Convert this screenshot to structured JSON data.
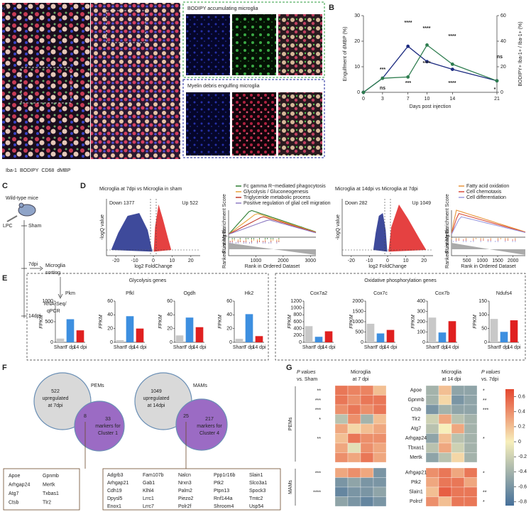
{
  "figure": {
    "panel_labels": [
      "A",
      "B",
      "C",
      "D",
      "E",
      "F",
      "G"
    ],
    "a": {
      "insets": [
        "BODIPY accumulating microglia",
        "Myelin debris engulfing microglia"
      ],
      "stains": [
        {
          "name": "Iba-1",
          "color": "#e3262d"
        },
        {
          "name": "BODIPY",
          "color": "#2e9e3e"
        },
        {
          "name": "CD68",
          "color": "#8a8a8a"
        },
        {
          "name": "dMBP",
          "color": "#1f2a9c"
        }
      ]
    },
    "c": {
      "mice": "Wild-type mice",
      "injection": "LPC",
      "groups": [
        "Sham",
        "7dpi",
        "14dpi"
      ],
      "sorting": [
        "Microglia",
        "sorting"
      ],
      "assay": [
        "RNA-Seq/",
        "qPCR"
      ]
    },
    "d": [
      {
        "title": "Microglia at 7dpi vs Microglia in sham",
        "down": "Down 1377",
        "up": "Up 522",
        "volcano_ylabel": "-logQ value",
        "volcano_xlabel": "log2 FoldChange",
        "volcano_xlim": [
          -25,
          25
        ],
        "volcano_xticks": [
          -20,
          -10,
          0,
          10,
          20
        ],
        "gsea_ylabel": "Running Enrichment Score",
        "gsea_metric_label": "Ranked List Metric",
        "gsea_xlabel": "Rank in Ordered Dataset",
        "gsea_xlim": [
          0,
          3200
        ],
        "gsea_xticks": [
          1000,
          2000,
          3000
        ],
        "pathways": [
          {
            "name": "Fc gamma R−mediated phagocytosis",
            "color": "#2e7d32"
          },
          {
            "name": "Glycolysis / Gluconeogenesis",
            "color": "#e8a33a"
          },
          {
            "name": "Triglyceride metabolic process",
            "color": "#c0392b"
          },
          {
            "name": "Positive regulation of glial cell migration",
            "color": "#8e7cc3"
          }
        ]
      },
      {
        "title": "Microglia at 14dpi vs Microglia at 7dpi",
        "down": "Down 282",
        "up": "Up 1049",
        "volcano_ylabel": "-logQ value",
        "volcano_xlabel": "log2 FoldChange",
        "volcano_xlim": [
          -25,
          25
        ],
        "volcano_xticks": [
          -20,
          -10,
          0,
          10,
          20
        ],
        "gsea_ylabel": "Running Enrichment Score",
        "gsea_metric_label": "Ranked List Metric",
        "gsea_xlabel": "Rank in Ordered Dataset",
        "gsea_xlim": [
          0,
          2400
        ],
        "gsea_xticks": [
          500,
          1000,
          1500,
          2000
        ],
        "pathways": [
          {
            "name": "Fatty acid oxidation",
            "color": "#e8943a"
          },
          {
            "name": "Cell chemotaxis",
            "color": "#d84a3a"
          },
          {
            "name": "Cell differentiation",
            "color": "#9a9ae0"
          }
        ]
      }
    ],
    "e": {
      "titles": [
        "Glycolysis genes",
        "Oxidative phosphorylation genes"
      ]
    },
    "f": {
      "venns": [
        {
          "name": "PEMs",
          "left": [
            "522",
            "upregulated",
            "at 7dpi"
          ],
          "overlap": "8",
          "right": [
            "33",
            "markers for",
            "Cluster 1"
          ],
          "genes": [
            [
              "Apoe",
              "Gpnmb"
            ],
            [
              "Arhgap24",
              "Mertk"
            ],
            [
              "Atg7",
              "Txbas1"
            ],
            [
              "Ctsb",
              "Tlr2"
            ]
          ]
        },
        {
          "name": "MAMs",
          "left": [
            "1049",
            "upregulated",
            "at 14dpi"
          ],
          "overlap": "25",
          "right": [
            "217",
            "markers for",
            "Cluster 4"
          ],
          "genes": [
            [
              "Adgrb3",
              "Fam107b",
              "Nalcn",
              "Ppp1r16b",
              "Slain1"
            ],
            [
              "Arhgap21",
              "Gab1",
              "Nrxn3",
              "Ptk2",
              "Slco3a1"
            ],
            [
              "Cdh19",
              "Klhl4",
              "Palm2",
              "Ptpn13",
              "Spock3"
            ],
            [
              "Dpysl5",
              "Lrrc1",
              "Piezo2",
              "Rnf144a",
              "Tmtc2"
            ],
            [
              "Enox1",
              "Lrrc7",
              "Polr2f",
              "Shroom4",
              "Usp54"
            ]
          ]
        }
      ],
      "left_color": "#d9d9d9",
      "right_color": "#9b6bc4",
      "overlap_color": "#f2c14e",
      "highlight_color": "#d0312d",
      "highlighted": [
        "Apoe",
        "Gpnmb",
        "Ctsb"
      ]
    }
  },
  "chart_data": [
    {
      "type": "line",
      "xlabel": "Days post injection",
      "ylabel": "Engulfment of dMBP (%)",
      "y2label": "BODIPY+ Iba-1+ / Iba-1+ (%)",
      "x": [
        0,
        3,
        7,
        10,
        14,
        21
      ],
      "xlim": [
        0,
        21
      ],
      "xticks": [
        0,
        3,
        7,
        10,
        14,
        21
      ],
      "ylim": [
        0,
        30
      ],
      "yticks": [
        0,
        10,
        20,
        30
      ],
      "y2lim": [
        0,
        60
      ],
      "y2ticks": [
        0,
        20,
        40,
        60
      ],
      "series": [
        {
          "color": "#1c2b80",
          "values": [
            0,
            5.5,
            18,
            12,
            9,
            4.5
          ]
        },
        {
          "color": "#2e7d4f",
          "axis": "y2",
          "values": [
            0,
            11,
            12,
            37,
            22,
            9
          ]
        }
      ],
      "annotations": [
        {
          "text": "***",
          "color": "#2e7d4f"
        },
        {
          "text": "ns",
          "color": "#1c2b80"
        },
        {
          "text": "****",
          "color": "#1c2b80"
        },
        {
          "text": "***",
          "color": "#2e7d4f"
        },
        {
          "text": "****",
          "color": "#2e7d4f"
        },
        {
          "text": "****",
          "color": "#1c2b80"
        },
        {
          "text": "****",
          "color": "#1c2b80"
        },
        {
          "text": "****",
          "color": "#2e7d4f"
        },
        {
          "text": "ns",
          "color": "#1c2b80"
        },
        {
          "text": "*",
          "color": "#2e7d4f"
        }
      ]
    },
    {
      "type": "bar",
      "title": "Pkm",
      "ylabel": "FPKM",
      "categories": [
        "Sham",
        "7 dpi",
        "14 dpi"
      ],
      "values": [
        90,
        560,
        290
      ],
      "colors": [
        "#c8c8c8",
        "#3d8fe0",
        "#e02020"
      ],
      "ylim": [
        0,
        1000
      ],
      "yticks": [
        0,
        500,
        1000
      ]
    },
    {
      "type": "bar",
      "title": "Pfkl",
      "ylabel": "FPKM",
      "categories": [
        "Sham",
        "7 dpi",
        "14 dpi"
      ],
      "values": [
        3,
        38,
        20
      ],
      "colors": [
        "#c8c8c8",
        "#3d8fe0",
        "#e02020"
      ],
      "ylim": [
        0,
        60
      ],
      "yticks": [
        0,
        20,
        40,
        60
      ]
    },
    {
      "type": "bar",
      "title": "Ogdh",
      "ylabel": "FPKM",
      "categories": [
        "Sham",
        "7 dpi",
        "14 dpi"
      ],
      "values": [
        10,
        36,
        22
      ],
      "colors": [
        "#c8c8c8",
        "#3d8fe0",
        "#e02020"
      ],
      "ylim": [
        0,
        60
      ],
      "yticks": [
        0,
        20,
        40,
        60
      ]
    },
    {
      "type": "bar",
      "title": "Hk2",
      "ylabel": "FPKM",
      "categories": [
        "Sham",
        "7 dpi",
        "14 dpi"
      ],
      "values": [
        5,
        41,
        9
      ],
      "colors": [
        "#c8c8c8",
        "#3d8fe0",
        "#e02020"
      ],
      "ylim": [
        0,
        60
      ],
      "yticks": [
        0,
        20,
        40,
        60
      ]
    },
    {
      "type": "bar",
      "title": "Cox7a2",
      "ylabel": "FPKM",
      "categories": [
        "Sham",
        "7 dpi",
        "14 dpi"
      ],
      "values": [
        470,
        160,
        320
      ],
      "colors": [
        "#c8c8c8",
        "#3d8fe0",
        "#e02020"
      ],
      "ylim": [
        0,
        1200
      ],
      "yticks": [
        0,
        200,
        400,
        600,
        800,
        1000,
        1200
      ]
    },
    {
      "type": "bar",
      "title": "Cox7c",
      "ylabel": "FPKM",
      "categories": [
        "Sham",
        "7 dpi",
        "14 dpi"
      ],
      "values": [
        900,
        430,
        600
      ],
      "colors": [
        "#c8c8c8",
        "#3d8fe0",
        "#e02020"
      ],
      "ylim": [
        0,
        2000
      ],
      "yticks": [
        0,
        500,
        1000,
        1500,
        2000
      ]
    },
    {
      "type": "bar",
      "title": "Cox7b",
      "ylabel": "FPKM",
      "categories": [
        "Sham",
        "7 dpi",
        "14 dpi"
      ],
      "values": [
        240,
        95,
        205
      ],
      "colors": [
        "#c8c8c8",
        "#3d8fe0",
        "#e02020"
      ],
      "ylim": [
        0,
        400
      ],
      "yticks": [
        0,
        100,
        200,
        300,
        400
      ]
    },
    {
      "type": "bar",
      "title": "Ndufs4",
      "ylabel": "FPKM",
      "categories": [
        "Sham",
        "7 dpi",
        "14 dpi"
      ],
      "values": [
        85,
        38,
        80
      ],
      "colors": [
        "#c8c8c8",
        "#3d8fe0",
        "#e02020"
      ],
      "ylim": [
        0,
        150
      ],
      "yticks": [
        0,
        50,
        100,
        150
      ]
    },
    {
      "type": "heatmap",
      "column_groups": [
        [
          "Microglia",
          "at 7 dpi"
        ],
        [
          "Microglia",
          "at 14 dpi"
        ]
      ],
      "p_headers": [
        [
          "P values",
          "vs. Sham"
        ],
        [
          "P values",
          "vs. 7dpi"
        ]
      ],
      "row_groups": [
        {
          "name": "PEMs",
          "rows": [
            "Apoe",
            "Gpnmb",
            "Ctsb",
            "Tlr2",
            "Atg7",
            "Arhgap24",
            "Tbxas1",
            "Mertk"
          ],
          "values": [
            [
              0.5,
              0.45,
              0.45,
              0.2,
              -0.4,
              0.2,
              -0.5,
              -0.5
            ],
            [
              0.5,
              0.4,
              0.5,
              0.5,
              -0.4,
              0.1,
              -0.6,
              -0.5
            ],
            [
              0.4,
              0.5,
              0.4,
              0.5,
              -0.6,
              -0.4,
              -0.5,
              -0.5
            ],
            [
              -0.3,
              0.4,
              -0.4,
              0.2,
              -0.2,
              0.3,
              -0.3,
              -0.4
            ],
            [
              0.3,
              0.1,
              0.2,
              0.3,
              -0.3,
              0,
              0.3,
              -0.4
            ],
            [
              0.2,
              0.5,
              0.4,
              0.4,
              -0.5,
              0.2,
              -0.3,
              -0.4
            ],
            [
              0.3,
              -0.1,
              0.4,
              0.3,
              -0.3,
              0.3,
              -0.2,
              -0.4
            ],
            [
              0.4,
              0.3,
              0.5,
              0.3,
              -0.5,
              -0.3,
              0.1,
              -0.4
            ]
          ],
          "p_left": [
            "**",
            "***",
            "***",
            "*",
            null,
            "**",
            null,
            null
          ],
          "p_right": [
            "*",
            "**",
            "***",
            null,
            null,
            "*",
            null,
            null
          ]
        },
        {
          "name": "MAMs",
          "rows": [
            "Arhgap21",
            "Ptk2",
            "Slain1",
            "Polrcf"
          ],
          "values": [
            [
              0.3,
              0.4,
              0.3,
              -0.6,
              0.4,
              0.5,
              0.3,
              0.5
            ],
            [
              -0.6,
              -0.5,
              -0.6,
              -0.6,
              0.3,
              0.5,
              0.5,
              0.3
            ],
            [
              -0.7,
              -0.6,
              -0.6,
              -0.5,
              0.2,
              0.6,
              0.5,
              0.5
            ],
            [
              -0.5,
              -0.6,
              -0.7,
              -0.6,
              0.4,
              0.2,
              0.5,
              0.5
            ]
          ],
          "p_left": [
            "***",
            null,
            "****",
            null
          ],
          "p_right": [
            "*",
            null,
            "**",
            "*"
          ]
        }
      ],
      "zlim": [
        -0.85,
        0.7
      ],
      "zticks": [
        -0.8,
        -0.6,
        -0.4,
        -0.2,
        0,
        0.2,
        0.4,
        0.6
      ],
      "colorscale": [
        {
          "value": -0.85,
          "color": "#46709a"
        },
        {
          "value": 0,
          "color": "#f7efbb"
        },
        {
          "value": 0.7,
          "color": "#e4472f"
        }
      ]
    }
  ]
}
